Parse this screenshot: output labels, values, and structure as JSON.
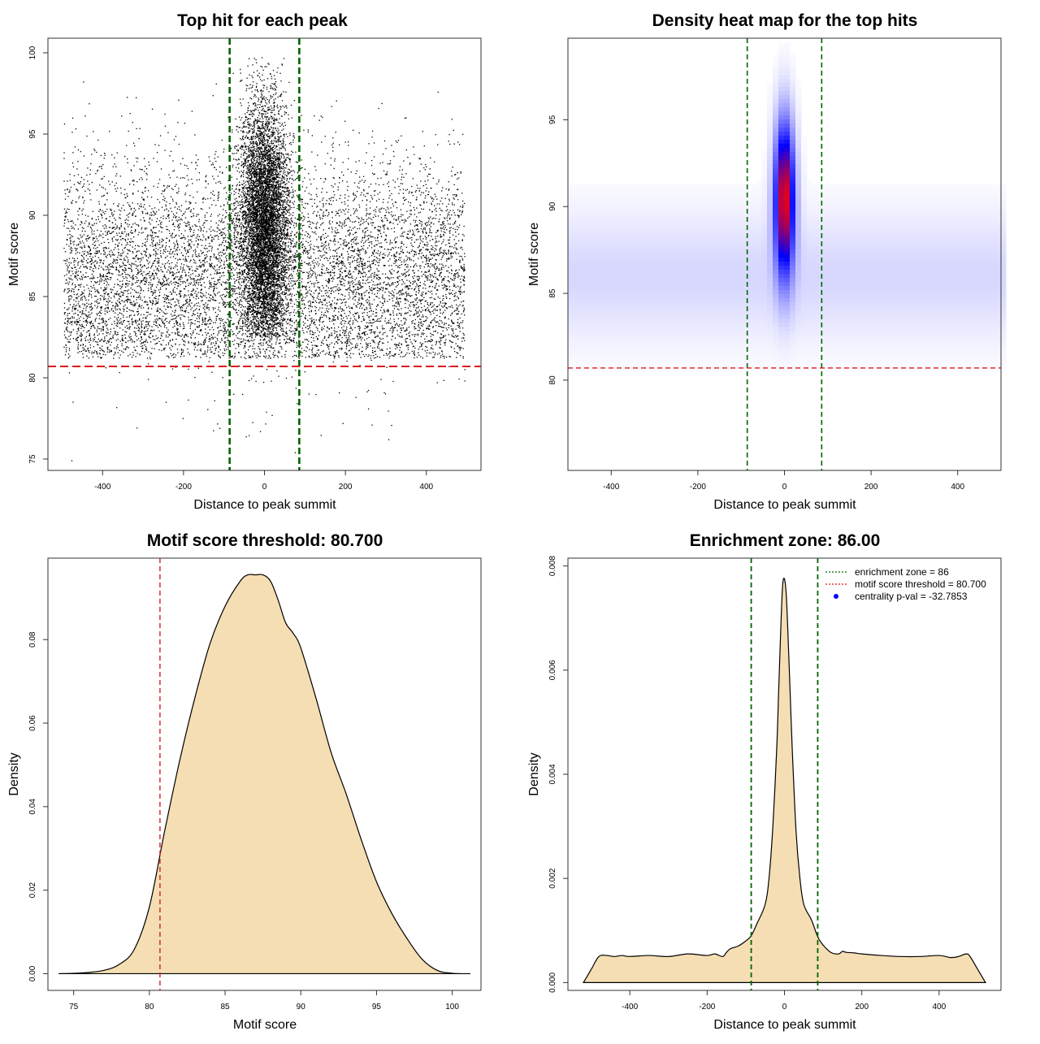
{
  "chart_data": [
    {
      "id": "scatter",
      "type": "scatter",
      "title": "Top hit for each peak",
      "xlabel": "Distance to peak summit",
      "ylabel": "Motif score",
      "xlim": [
        -535,
        535
      ],
      "ylim": [
        74.3,
        100.9
      ],
      "xticks": [
        -400,
        -200,
        0,
        200,
        400
      ],
      "yticks": [
        75,
        80,
        85,
        90,
        95,
        100
      ],
      "vlines": [
        -86,
        86
      ],
      "hline": 80.7,
      "colors": {
        "points": "#000000",
        "vlines": "#006400",
        "hline": "#e0181b"
      },
      "point_distribution": {
        "uniform": {
          "x_range": [
            -495,
            495
          ],
          "score_mean": 86.2,
          "score_sd": 3.5
        },
        "central": {
          "x_center": 0,
          "x_sd": 30,
          "score_mean": 89.5,
          "score_sd": 3.8
        },
        "score_max": 99.9
      }
    },
    {
      "id": "heatmap",
      "type": "heatmap",
      "title": "Density heat map for the top hits",
      "xlabel": "Distance to peak summit",
      "ylabel": "Motif score",
      "xlim": [
        -500,
        500
      ],
      "ylim": [
        74.8,
        99.7
      ],
      "xticks": [
        -400,
        -200,
        0,
        200,
        400
      ],
      "yticks": [
        80,
        85,
        90,
        95
      ],
      "vlines": [
        -86,
        86
      ],
      "hline": 80.7,
      "colors": {
        "low": "#ffffff",
        "mid": "#0000ff",
        "high": "#ff0000",
        "vlines": "#006400",
        "hline": "#e0181b"
      },
      "density": {
        "background": {
          "score_mean": 86,
          "score_sd": 2.6,
          "x_range": [
            -500,
            500
          ]
        },
        "peak": {
          "x_center": 0,
          "x_sd": 16,
          "score_mean": 90.5,
          "score_sd": 3.0
        }
      }
    },
    {
      "id": "score-density",
      "type": "area",
      "title": "Motif score threshold: 80.700",
      "xlabel": "Motif score",
      "ylabel": "Density",
      "xlim": [
        73.3,
        101.9
      ],
      "ylim": [
        -0.004,
        0.0995
      ],
      "xticks": [
        75,
        80,
        85,
        90,
        95,
        100
      ],
      "yticks": [
        0.0,
        0.02,
        0.04,
        0.06,
        0.08
      ],
      "ytick_labels": [
        "0.00",
        "0.02",
        "0.04",
        "0.06",
        "0.08"
      ],
      "vlines": [
        80.7
      ],
      "colors": {
        "fill": "#f5deb3",
        "line": "#000000",
        "vline": "#d02020"
      },
      "x": [
        74,
        75,
        76,
        77,
        78,
        79,
        80,
        81,
        82,
        83,
        84,
        85,
        86,
        86.5,
        87,
        87.5,
        88,
        88.5,
        89,
        89.5,
        90,
        91,
        92,
        93,
        94,
        95,
        96,
        97,
        98,
        99,
        100,
        101.2
      ],
      "y": [
        0.0,
        0.0001,
        0.0003,
        0.0008,
        0.0022,
        0.0058,
        0.016,
        0.034,
        0.051,
        0.066,
        0.079,
        0.088,
        0.094,
        0.0955,
        0.0955,
        0.0955,
        0.094,
        0.0895,
        0.084,
        0.0815,
        0.078,
        0.066,
        0.053,
        0.043,
        0.032,
        0.022,
        0.0145,
        0.0085,
        0.0035,
        0.0008,
        0.0001,
        0.0
      ]
    },
    {
      "id": "distance-density",
      "type": "area",
      "title": "Enrichment zone: 86.00",
      "xlabel": "Distance to peak summit",
      "ylabel": "Density",
      "xlim": [
        -560,
        560
      ],
      "ylim": [
        -0.00015,
        0.00815
      ],
      "xticks": [
        -400,
        -200,
        0,
        200,
        400
      ],
      "yticks": [
        0.0,
        0.002,
        0.004,
        0.006,
        0.008
      ],
      "ytick_labels": [
        "0.000",
        "0.002",
        "0.004",
        "0.006",
        "0.008"
      ],
      "vlines": [
        -86,
        86
      ],
      "colors": {
        "fill": "#f5deb3",
        "line": "#000000",
        "vlines": "#006400"
      },
      "x": [
        -520,
        -500,
        -480,
        -460,
        -440,
        -420,
        -400,
        -350,
        -300,
        -250,
        -200,
        -180,
        -160,
        -150,
        -140,
        -120,
        -100,
        -86,
        -70,
        -50,
        -40,
        -30,
        -20,
        -15,
        -10,
        -5,
        0,
        5,
        10,
        15,
        20,
        30,
        40,
        50,
        70,
        86,
        100,
        120,
        140,
        150,
        160,
        180,
        200,
        250,
        300,
        350,
        400,
        430,
        450,
        470,
        480,
        500,
        520
      ],
      "y": [
        0.0,
        0.00025,
        0.0005,
        0.00052,
        0.0005,
        0.00052,
        0.0005,
        0.00052,
        0.0005,
        0.00055,
        0.00052,
        0.00055,
        0.0005,
        0.00058,
        0.00065,
        0.0007,
        0.0008,
        0.0009,
        0.00115,
        0.0015,
        0.002,
        0.003,
        0.0045,
        0.0056,
        0.0067,
        0.0076,
        0.00775,
        0.0074,
        0.0065,
        0.0055,
        0.0045,
        0.0029,
        0.002,
        0.0015,
        0.0012,
        0.00088,
        0.00072,
        0.00058,
        0.00055,
        0.0006,
        0.00058,
        0.00057,
        0.00055,
        0.00052,
        0.0005,
        0.0005,
        0.00052,
        0.00048,
        0.0005,
        0.00055,
        0.0005,
        0.00025,
        0.0
      ]
    }
  ],
  "legend": {
    "items": [
      {
        "label": "enrichment zone = 86",
        "color": "#006400",
        "symbol": "dotted-line"
      },
      {
        "label": "motif score threshold = 80.700",
        "color": "#e0181b",
        "symbol": "dotted-line"
      },
      {
        "label": "centrality p-val = -32.7853",
        "color": "#0000ff",
        "symbol": "point"
      }
    ]
  }
}
